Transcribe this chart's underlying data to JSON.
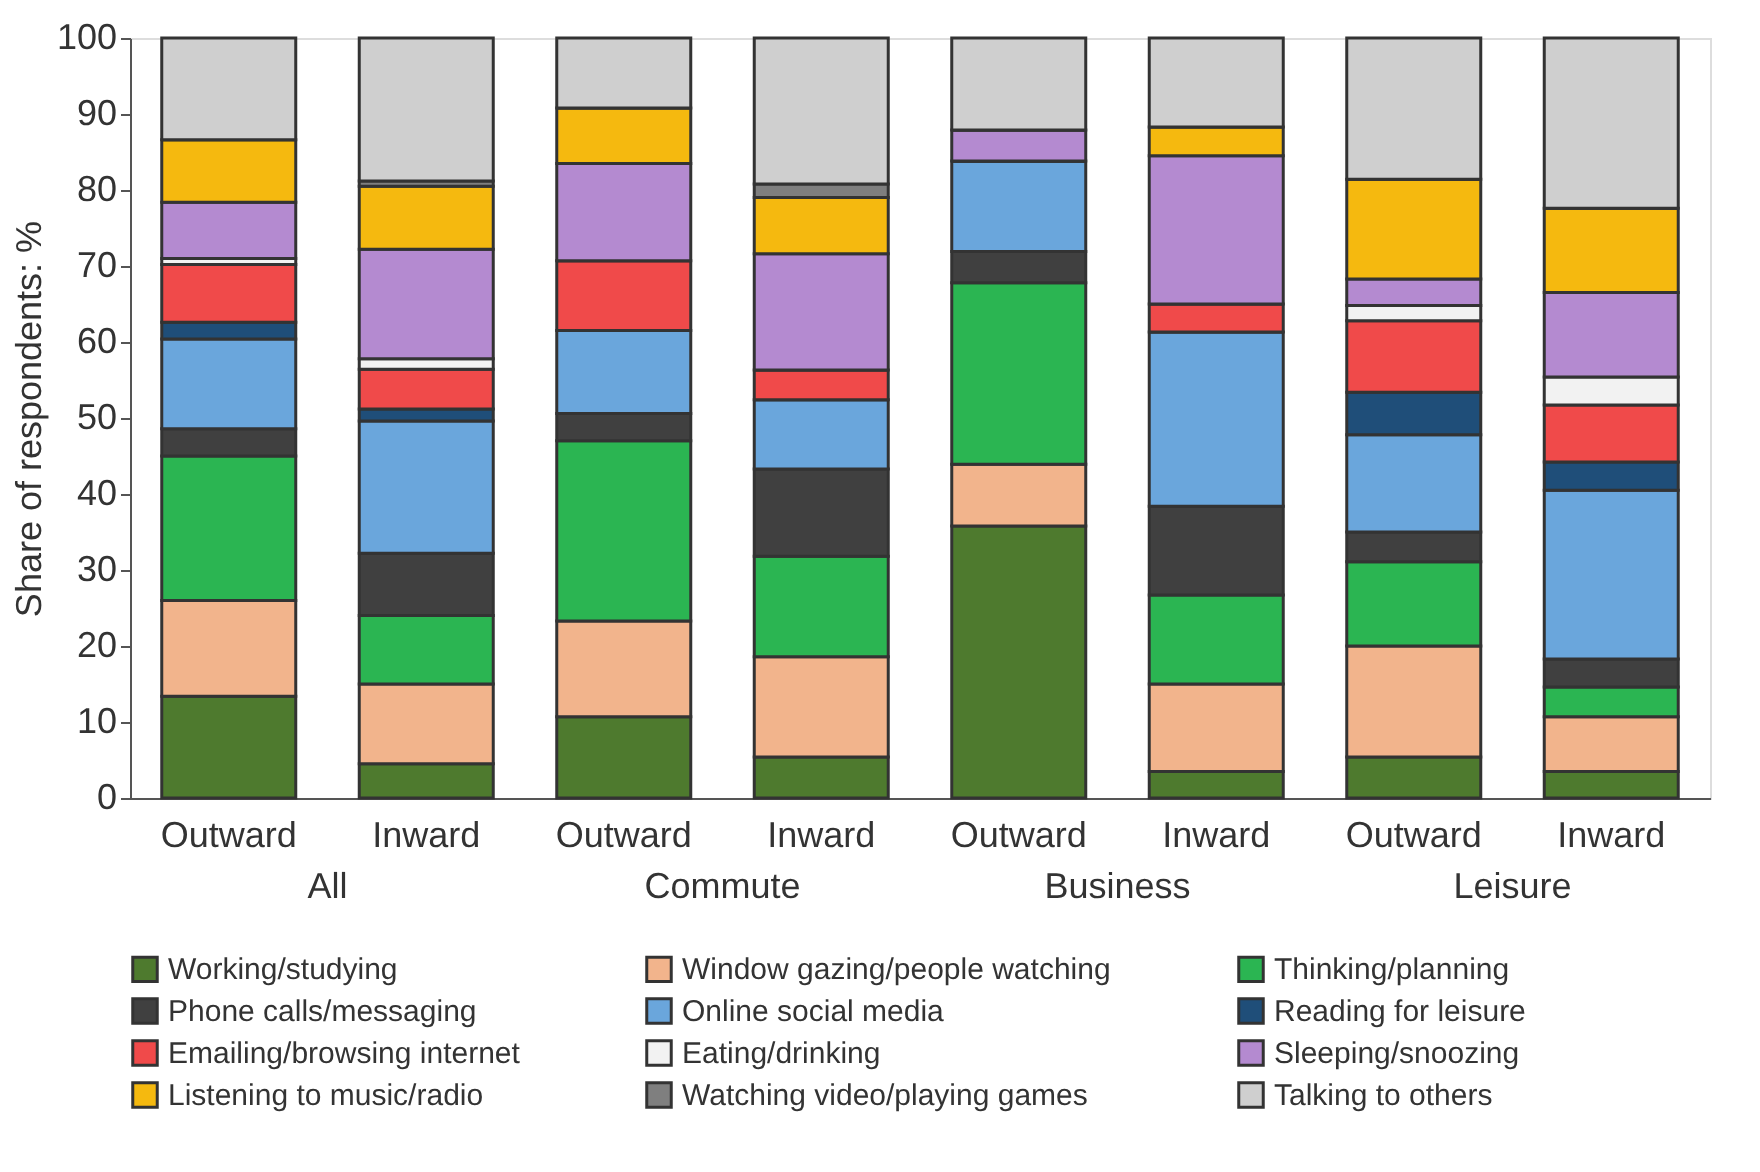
{
  "chart_data": {
    "type": "bar",
    "stacked": true,
    "ylabel": "Share of respondents: %",
    "categories": [
      "Outward",
      "Inward",
      "Outward",
      "Inward",
      "Outward",
      "Inward",
      "Outward",
      "Inward"
    ],
    "annotations": [
      "All",
      "Commute",
      "Business",
      "Leisure"
    ],
    "ylim": [
      0,
      100
    ],
    "yticks": [
      0,
      10,
      20,
      30,
      40,
      50,
      60,
      70,
      80,
      90,
      100
    ],
    "grid": false,
    "legend": "bottom",
    "series": [
      {
        "name": "Working/studying",
        "color": "#4e7a2e",
        "values": [
          13.4,
          4.5,
          10.7,
          5.4,
          35.8,
          3.5,
          5.4,
          3.5
        ]
      },
      {
        "name": "Window gazing/people watching",
        "color": "#f2b48c",
        "values": [
          12.6,
          10.5,
          12.6,
          13.2,
          8.1,
          11.5,
          14.6,
          7.2
        ]
      },
      {
        "name": "Thinking/planning",
        "color": "#2bb552",
        "values": [
          19,
          9,
          23.7,
          13.2,
          23.9,
          11.7,
          11.1,
          3.9
        ]
      },
      {
        "name": "Phone calls/messaging",
        "color": "#404040",
        "values": [
          3.6,
          8.2,
          3.6,
          11.5,
          4.1,
          11.7,
          3.9,
          3.7
        ]
      },
      {
        "name": "Online social media",
        "color": "#6aa6dc",
        "values": [
          11.8,
          17.4,
          10.9,
          9.1,
          11.9,
          22.9,
          12.8,
          22.2
        ]
      },
      {
        "name": "Reading for leisure",
        "color": "#1f4e79",
        "values": [
          2.2,
          1.6,
          0,
          0,
          0,
          0,
          5.6,
          3.7
        ]
      },
      {
        "name": "Emailing/browsing internet",
        "color": "#f04a4a",
        "values": [
          7.6,
          5.2,
          9.2,
          3.9,
          0,
          3.7,
          9.4,
          7.5
        ]
      },
      {
        "name": "Eating/drinking",
        "color": "#f2f2f2",
        "values": [
          0.8,
          1.4,
          0,
          0,
          0,
          0,
          2,
          3.7
        ]
      },
      {
        "name": "Sleeping/snoozing",
        "color": "#b48ad0",
        "values": [
          7.4,
          14.4,
          12.8,
          15.3,
          4.1,
          19.5,
          3.5,
          11.1
        ]
      },
      {
        "name": "Listening to music/radio",
        "color": "#f5b90f",
        "values": [
          8.2,
          8.3,
          7.3,
          7.4,
          0,
          3.8,
          13.1,
          11.1
        ]
      },
      {
        "name": "Watching video/playing games",
        "color": "#7f7f7f",
        "values": [
          0,
          0.7,
          0,
          1.8,
          0,
          0,
          0,
          0
        ]
      },
      {
        "name": "Talking to others",
        "color": "#cfcfcf",
        "values": [
          13.4,
          18.8,
          9.2,
          19.2,
          12.1,
          11.7,
          18.6,
          22.4
        ]
      }
    ]
  }
}
